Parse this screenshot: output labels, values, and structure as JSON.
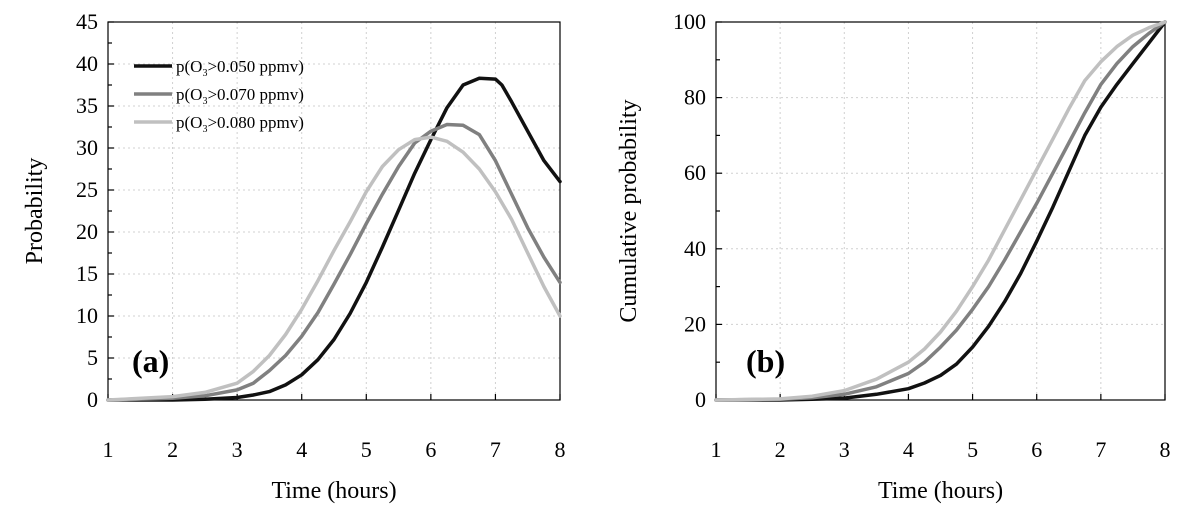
{
  "chart_data": [
    {
      "type": "line",
      "panel_label": "(a)",
      "xlabel": "Time (hours)",
      "ylabel": "Probability",
      "xlim": [
        1,
        8
      ],
      "ylim": [
        0,
        45
      ],
      "xticks": [
        "1",
        "2",
        "3",
        "4",
        "5",
        "6",
        "7",
        "8"
      ],
      "yticks": [
        "0",
        "5",
        "10",
        "15",
        "20",
        "25",
        "30",
        "35",
        "40",
        "45"
      ],
      "grid": true,
      "legend_position": "top-left",
      "series": [
        {
          "name": "p(O3>0.050 ppmv)",
          "legend_main": "p(O",
          "legend_sub": "3",
          "legend_rest": ">0.050 ppmv)",
          "color": "#111111",
          "x": [
            1,
            2,
            2.5,
            3,
            3.25,
            3.5,
            3.75,
            4,
            4.25,
            4.5,
            4.75,
            5,
            5.25,
            5.5,
            5.75,
            6,
            6.25,
            6.5,
            6.75,
            7,
            7.1,
            7.25,
            7.5,
            7.75,
            8
          ],
          "y": [
            0,
            0,
            0.1,
            0.3,
            0.6,
            1.0,
            1.8,
            3.0,
            4.8,
            7.2,
            10.3,
            14.0,
            18.2,
            22.6,
            27.0,
            31.0,
            34.8,
            37.5,
            38.3,
            38.2,
            37.5,
            35.5,
            32.0,
            28.5,
            26.0
          ]
        },
        {
          "name": "p(O3>0.070 ppmv)",
          "legend_main": "p(O",
          "legend_sub": "3",
          "legend_rest": ">0.070 ppmv)",
          "color": "#808080",
          "x": [
            1,
            2,
            2.5,
            3,
            3.25,
            3.5,
            3.75,
            4,
            4.25,
            4.5,
            4.75,
            5,
            5.25,
            5.5,
            5.75,
            6,
            6.25,
            6.5,
            6.75,
            7,
            7.25,
            7.5,
            7.75,
            8
          ],
          "y": [
            0,
            0.2,
            0.5,
            1.2,
            2.0,
            3.5,
            5.3,
            7.6,
            10.4,
            13.8,
            17.3,
            21.0,
            24.5,
            27.8,
            30.6,
            32.0,
            32.8,
            32.7,
            31.6,
            28.5,
            24.5,
            20.5,
            17.0,
            14.0
          ]
        },
        {
          "name": "p(O3>0.080 ppmv)",
          "legend_main": "p(O",
          "legend_sub": "3",
          "legend_rest": ">0.080 ppmv)",
          "color": "#c0c0c0",
          "x": [
            1,
            2,
            2.5,
            3,
            3.25,
            3.5,
            3.75,
            4,
            4.25,
            4.5,
            4.75,
            5,
            5.25,
            5.5,
            5.75,
            6,
            6.25,
            6.5,
            6.75,
            7,
            7.25,
            7.5,
            7.75,
            8
          ],
          "y": [
            0,
            0.4,
            0.9,
            2.0,
            3.4,
            5.3,
            7.8,
            10.8,
            14.2,
            17.8,
            21.2,
            24.8,
            27.8,
            29.8,
            31.0,
            31.3,
            30.8,
            29.5,
            27.5,
            24.8,
            21.5,
            17.5,
            13.5,
            10.0
          ]
        }
      ]
    },
    {
      "type": "line",
      "panel_label": "(b)",
      "xlabel": "Time (hours)",
      "ylabel": "Cumulative probability",
      "xlim": [
        1,
        8
      ],
      "ylim": [
        0,
        100
      ],
      "xticks": [
        "1",
        "2",
        "3",
        "4",
        "5",
        "6",
        "7",
        "8"
      ],
      "yticks": [
        "0",
        "20",
        "40",
        "60",
        "80",
        "100"
      ],
      "grid": true,
      "series": [
        {
          "name": "p(O3>0.050 ppmv)",
          "color": "#111111",
          "x": [
            1,
            2,
            2.5,
            3,
            3.5,
            4,
            4.25,
            4.5,
            4.75,
            5,
            5.25,
            5.5,
            5.75,
            6,
            6.25,
            6.5,
            6.75,
            7,
            7.25,
            7.5,
            7.75,
            8
          ],
          "y": [
            0,
            0,
            0.2,
            0.5,
            1.5,
            3.0,
            4.5,
            6.5,
            9.5,
            14.0,
            19.5,
            26.0,
            33.5,
            42.0,
            51.0,
            60.5,
            70.0,
            77.5,
            83.5,
            89.0,
            94.5,
            100
          ]
        },
        {
          "name": "p(O3>0.070 ppmv)",
          "color": "#808080",
          "x": [
            1,
            2,
            2.5,
            3,
            3.5,
            4,
            4.25,
            4.5,
            4.75,
            5,
            5.25,
            5.5,
            5.75,
            6,
            6.25,
            6.5,
            6.75,
            7,
            7.25,
            7.5,
            7.75,
            8
          ],
          "y": [
            0,
            0.2,
            0.6,
            1.5,
            3.5,
            7.0,
            10.0,
            14.0,
            18.5,
            24.0,
            30.0,
            37.0,
            44.5,
            52.0,
            60.0,
            68.0,
            76.0,
            83.5,
            89.0,
            93.5,
            97.0,
            100
          ]
        },
        {
          "name": "p(O3>0.080 ppmv)",
          "color": "#c0c0c0",
          "x": [
            1,
            2,
            2.5,
            3,
            3.5,
            4,
            4.25,
            4.5,
            4.75,
            5,
            5.25,
            5.5,
            5.75,
            6,
            6.25,
            6.5,
            6.75,
            7,
            7.25,
            7.5,
            7.75,
            8
          ],
          "y": [
            0,
            0.3,
            1.0,
            2.5,
            5.5,
            10.0,
            13.5,
            18.0,
            23.5,
            30.0,
            37.0,
            45.0,
            53.0,
            61.0,
            69.0,
            77.0,
            84.5,
            89.5,
            93.5,
            96.5,
            98.5,
            100
          ]
        }
      ]
    }
  ]
}
